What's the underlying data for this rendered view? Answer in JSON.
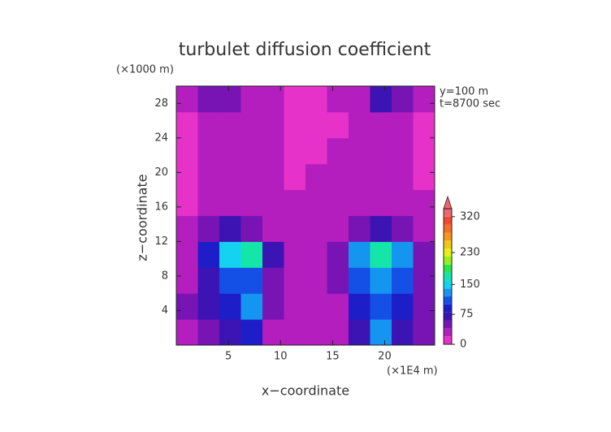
{
  "chart_data": {
    "type": "heatmap",
    "title": "turbulet diffusion coefficient",
    "y_unit": "(×1000 m)",
    "x_unit": "(×1E4 m)",
    "xlabel": "x−coordinate",
    "ylabel": "z−coordinate",
    "annotations": [
      "y=100 m",
      "t=8700 sec"
    ],
    "xlim": [
      0,
      24.8
    ],
    "xticks": [
      5,
      10,
      15,
      20
    ],
    "ylim": [
      0,
      30
    ],
    "yticks": [
      4,
      8,
      12,
      16,
      20,
      24,
      28
    ],
    "xbins": [
      0,
      2.07,
      4.13,
      6.2,
      8.27,
      10.33,
      12.4,
      14.47,
      16.53,
      18.6,
      20.67,
      22.73,
      24.8
    ],
    "ybins": [
      0,
      3,
      6,
      9,
      12,
      15,
      18,
      21,
      24,
      27,
      30
    ],
    "values": [
      [
        30,
        40,
        60,
        90,
        30,
        20,
        20,
        30,
        60,
        120,
        70,
        40
      ],
      [
        40,
        60,
        90,
        120,
        40,
        20,
        20,
        30,
        80,
        110,
        90,
        40
      ],
      [
        30,
        70,
        110,
        100,
        50,
        30,
        30,
        40,
        100,
        130,
        100,
        50
      ],
      [
        30,
        80,
        150,
        160,
        60,
        30,
        30,
        50,
        120,
        170,
        120,
        40
      ],
      [
        20,
        40,
        60,
        50,
        30,
        20,
        20,
        30,
        40,
        60,
        50,
        30
      ],
      [
        10,
        20,
        20,
        20,
        30,
        20,
        30,
        20,
        20,
        20,
        30,
        20
      ],
      [
        10,
        20,
        30,
        20,
        20,
        10,
        20,
        20,
        30,
        20,
        20,
        10
      ],
      [
        10,
        30,
        20,
        30,
        20,
        10,
        10,
        20,
        30,
        30,
        20,
        10
      ],
      [
        10,
        20,
        20,
        20,
        20,
        10,
        10,
        10,
        20,
        30,
        30,
        10
      ],
      [
        20,
        40,
        50,
        30,
        20,
        10,
        10,
        20,
        30,
        60,
        40,
        20
      ]
    ],
    "colorbar": {
      "lim": [
        0,
        340
      ],
      "ticks": [
        0,
        75,
        150,
        230,
        320
      ],
      "levels": [
        0,
        20,
        40,
        60,
        80,
        100,
        120,
        140,
        160,
        180,
        200,
        220,
        240,
        260,
        280,
        300,
        320,
        340
      ],
      "colors": [
        "#e632c8",
        "#b41ebe",
        "#7814b4",
        "#3c14b4",
        "#1e1ec8",
        "#1450e6",
        "#1496f0",
        "#14d2f0",
        "#14e6aa",
        "#28e650",
        "#96f01e",
        "#e6f014",
        "#f0c814",
        "#f5961e",
        "#f56e28",
        "#f04a32",
        "#f0646e"
      ]
    }
  }
}
